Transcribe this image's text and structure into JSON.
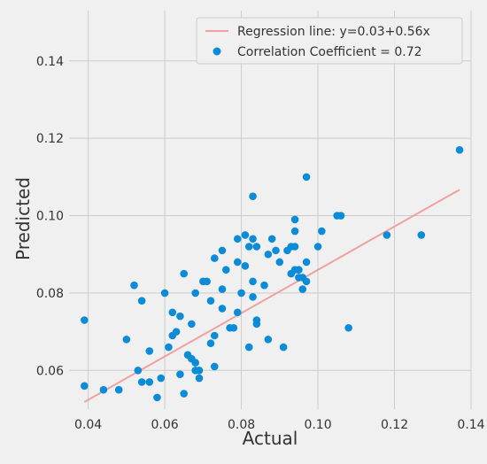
{
  "chart_data": {
    "type": "scatter",
    "xlabel": "Actual",
    "ylabel": "Predicted",
    "xlim": [
      0.035,
      0.14
    ],
    "ylim": [
      0.05,
      0.153
    ],
    "x_ticks": [
      0.04,
      0.06,
      0.08,
      0.1,
      0.12,
      0.14
    ],
    "y_ticks": [
      0.06,
      0.08,
      0.1,
      0.12,
      0.14
    ],
    "x_tick_labels": [
      "0.04",
      "0.06",
      "0.08",
      "0.10",
      "0.12",
      "0.14"
    ],
    "y_tick_labels": [
      "0.06",
      "0.08",
      "0.10",
      "0.12",
      "0.14"
    ],
    "grid": true,
    "legend_placement": "top-right",
    "series": [
      {
        "name": "Correlation Coefficient = 0.72",
        "kind": "scatter",
        "color": "#0c8bd6",
        "points": [
          [
            0.039,
            0.073
          ],
          [
            0.039,
            0.056
          ],
          [
            0.044,
            0.055
          ],
          [
            0.048,
            0.055
          ],
          [
            0.05,
            0.068
          ],
          [
            0.052,
            0.082
          ],
          [
            0.053,
            0.06
          ],
          [
            0.054,
            0.078
          ],
          [
            0.054,
            0.057
          ],
          [
            0.056,
            0.057
          ],
          [
            0.056,
            0.065
          ],
          [
            0.058,
            0.053
          ],
          [
            0.059,
            0.058
          ],
          [
            0.06,
            0.08
          ],
          [
            0.061,
            0.066
          ],
          [
            0.062,
            0.075
          ],
          [
            0.062,
            0.069
          ],
          [
            0.063,
            0.07
          ],
          [
            0.064,
            0.059
          ],
          [
            0.064,
            0.074
          ],
          [
            0.065,
            0.054
          ],
          [
            0.065,
            0.085
          ],
          [
            0.066,
            0.064
          ],
          [
            0.067,
            0.072
          ],
          [
            0.067,
            0.063
          ],
          [
            0.068,
            0.062
          ],
          [
            0.068,
            0.08
          ],
          [
            0.068,
            0.06
          ],
          [
            0.069,
            0.058
          ],
          [
            0.069,
            0.06
          ],
          [
            0.07,
            0.083
          ],
          [
            0.071,
            0.083
          ],
          [
            0.072,
            0.067
          ],
          [
            0.072,
            0.078
          ],
          [
            0.073,
            0.089
          ],
          [
            0.073,
            0.069
          ],
          [
            0.073,
            0.061
          ],
          [
            0.075,
            0.076
          ],
          [
            0.075,
            0.081
          ],
          [
            0.075,
            0.091
          ],
          [
            0.076,
            0.086
          ],
          [
            0.077,
            0.071
          ],
          [
            0.078,
            0.071
          ],
          [
            0.079,
            0.094
          ],
          [
            0.079,
            0.088
          ],
          [
            0.079,
            0.075
          ],
          [
            0.08,
            0.08
          ],
          [
            0.081,
            0.087
          ],
          [
            0.081,
            0.095
          ],
          [
            0.082,
            0.092
          ],
          [
            0.082,
            0.066
          ],
          [
            0.083,
            0.105
          ],
          [
            0.083,
            0.079
          ],
          [
            0.083,
            0.083
          ],
          [
            0.083,
            0.094
          ],
          [
            0.084,
            0.092
          ],
          [
            0.084,
            0.072
          ],
          [
            0.084,
            0.073
          ],
          [
            0.086,
            0.082
          ],
          [
            0.087,
            0.09
          ],
          [
            0.087,
            0.068
          ],
          [
            0.088,
            0.094
          ],
          [
            0.089,
            0.091
          ],
          [
            0.09,
            0.088
          ],
          [
            0.091,
            0.066
          ],
          [
            0.092,
            0.091
          ],
          [
            0.093,
            0.092
          ],
          [
            0.093,
            0.085
          ],
          [
            0.094,
            0.092
          ],
          [
            0.094,
            0.086
          ],
          [
            0.094,
            0.096
          ],
          [
            0.094,
            0.099
          ],
          [
            0.095,
            0.084
          ],
          [
            0.095,
            0.086
          ],
          [
            0.096,
            0.081
          ],
          [
            0.096,
            0.084
          ],
          [
            0.097,
            0.083
          ],
          [
            0.097,
            0.11
          ],
          [
            0.097,
            0.088
          ],
          [
            0.1,
            0.092
          ],
          [
            0.101,
            0.096
          ],
          [
            0.105,
            0.1
          ],
          [
            0.106,
            0.1
          ],
          [
            0.108,
            0.071
          ],
          [
            0.118,
            0.095
          ],
          [
            0.127,
            0.095
          ],
          [
            0.137,
            0.117
          ]
        ]
      }
    ],
    "regression": {
      "name": "Regression line: y=0.03+0.56x",
      "kind": "line",
      "color": "#f0a0a0",
      "intercept": 0.03,
      "slope": 0.56,
      "x_range": [
        0.039,
        0.137
      ]
    }
  }
}
